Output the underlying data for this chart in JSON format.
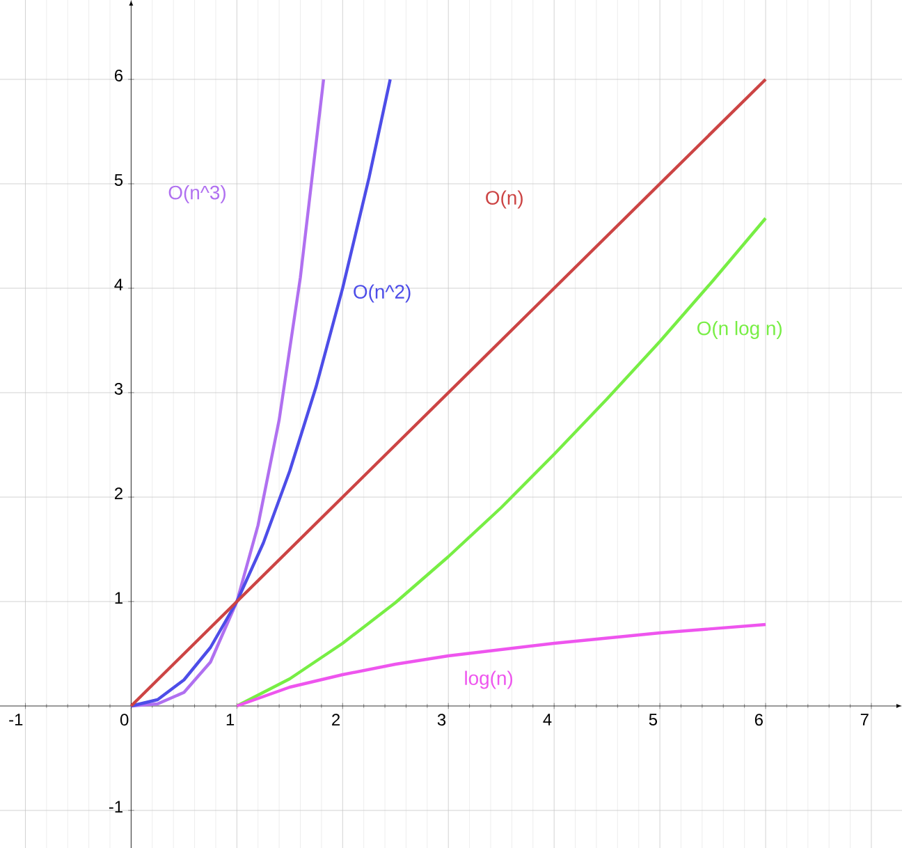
{
  "chart_data": {
    "type": "line",
    "xlim": [
      -1.24,
      7.29
    ],
    "ylim": [
      -1.36,
      6.76
    ],
    "xticks": [
      -1,
      0,
      1,
      2,
      3,
      4,
      5,
      6,
      7
    ],
    "yticks": [
      -1,
      1,
      2,
      3,
      4,
      5,
      6
    ],
    "grid": true,
    "legend": false,
    "marker": "none",
    "line_style": "solid",
    "series": [
      {
        "name": "O(n^3)",
        "color": "#b070f0",
        "x": [
          0,
          0.25,
          0.5,
          0.75,
          1,
          1.2,
          1.4,
          1.6,
          1.82
        ],
        "values": [
          0,
          0.02,
          0.13,
          0.42,
          1,
          1.73,
          2.74,
          4.1,
          6
        ]
      },
      {
        "name": "O(n^2)",
        "color": "#4d4de8",
        "x": [
          0,
          0.25,
          0.5,
          0.75,
          1,
          1.25,
          1.5,
          1.75,
          2,
          2.25,
          2.45
        ],
        "values": [
          0,
          0.06,
          0.25,
          0.56,
          1,
          1.56,
          2.25,
          3.06,
          4,
          5.06,
          6
        ]
      },
      {
        "name": "O(n)",
        "color": "#cc4444",
        "x": [
          0,
          6
        ],
        "values": [
          0,
          6
        ]
      },
      {
        "name": "O(n log n)",
        "color": "#77ee44",
        "x": [
          1,
          1.5,
          2,
          2.5,
          3,
          3.5,
          4,
          4.5,
          5,
          5.5,
          6
        ],
        "values": [
          0,
          0.26,
          0.6,
          0.99,
          1.43,
          1.9,
          2.41,
          2.94,
          3.49,
          4.07,
          4.67
        ]
      },
      {
        "name": "log(n)",
        "color": "#ee55ee",
        "x": [
          1,
          1.5,
          2,
          2.5,
          3,
          3.5,
          4,
          4.5,
          5,
          5.5,
          6
        ],
        "values": [
          0,
          0.18,
          0.3,
          0.4,
          0.48,
          0.54,
          0.6,
          0.65,
          0.7,
          0.74,
          0.78
        ]
      }
    ]
  }
}
